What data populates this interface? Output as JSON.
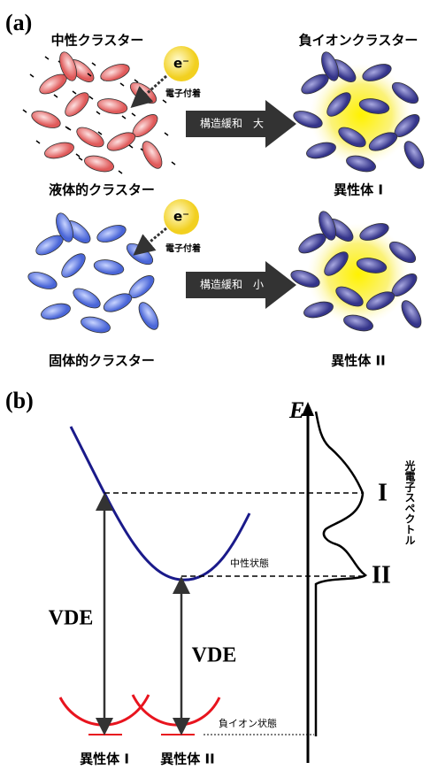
{
  "panel_a": {
    "label": "(a)",
    "neutral_title": "中性クラスター",
    "anion_title": "負イオンクラスター",
    "rows": [
      {
        "electron": "e⁻",
        "attach": "電子付着",
        "relax": "構造緩和　大",
        "cluster": "液体的クラスター",
        "isomer": "異性体 I"
      },
      {
        "electron": "e⁻",
        "attach": "電子付着",
        "relax": "構造緩和　小",
        "cluster": "固体的クラスター",
        "isomer": "異性体 II"
      }
    ]
  },
  "panel_b": {
    "label": "(b)",
    "energy_axis": "E",
    "spectrum_label": "光電子スペクトル",
    "peaks": [
      "I",
      "II"
    ],
    "neutral_state": "中性状態",
    "anion_state": "負イオン状態",
    "vde": [
      "VDE",
      "VDE"
    ],
    "isomers": [
      "異性体 I",
      "異性体 II"
    ]
  }
}
